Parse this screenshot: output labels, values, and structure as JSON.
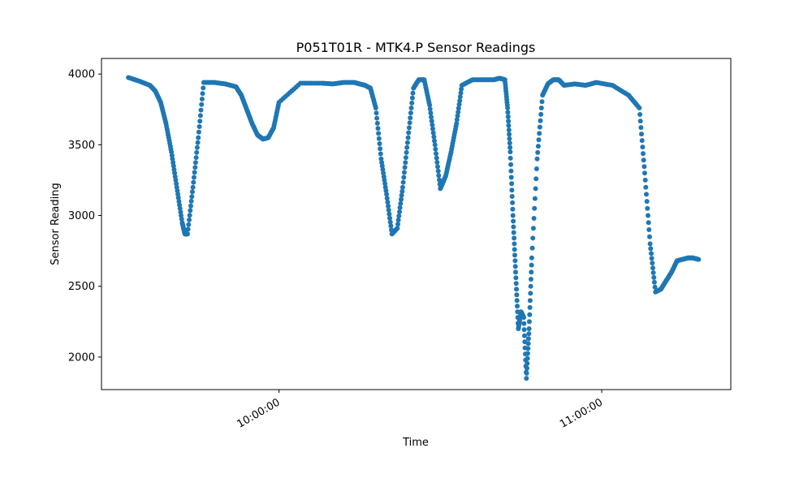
{
  "chart_data": {
    "type": "scatter",
    "title": "P051T01R - MTK4.P Sensor Readings",
    "xlabel": "Time",
    "ylabel": "Sensor Reading",
    "x_unit": "minutes",
    "xlim": [
      "09:27:00",
      "11:24:00"
    ],
    "ylim": [
      1770,
      4110
    ],
    "yticks": [
      2000,
      2500,
      3000,
      3500,
      4000
    ],
    "xticks": [
      "10:00:00",
      "11:00:00"
    ],
    "grid": false,
    "color": "#1f77b4",
    "series": [
      {
        "x": [
          "09:32:00",
          "09:34:00",
          "09:36:00",
          "09:37:00",
          "09:38:00",
          "09:39:00",
          "09:40:00",
          "09:41:00",
          "09:42:00",
          "09:42:30",
          "09:43:00",
          "09:44:00",
          "09:45:00",
          "09:46:00",
          "09:48:00",
          "09:50:00",
          "09:52:00",
          "09:53:00",
          "09:54:00",
          "09:55:00",
          "09:56:00",
          "09:57:00",
          "09:58:00",
          "09:59:00",
          "10:00:00",
          "10:04:00",
          "10:08:00",
          "10:10:00",
          "10:12:00",
          "10:14:00",
          "10:15:00",
          "10:16:00",
          "10:17:00",
          "10:18:00",
          "10:19:00",
          "10:20:00",
          "10:21:00",
          "10:22:00",
          "10:23:00",
          "10:24:00",
          "10:25:00",
          "10:26:00",
          "10:27:00",
          "10:28:00",
          "10:29:00",
          "10:30:00",
          "10:31:00",
          "10:32:00",
          "10:33:00",
          "10:34:00",
          "10:36:00",
          "10:38:00",
          "10:40:00",
          "10:41:00",
          "10:42:00",
          "10:42:30",
          "10:43:00",
          "10:43:30",
          "10:44:00",
          "10:44:30",
          "10:45:00",
          "10:45:30",
          "10:46:00",
          "10:46:30",
          "10:47:00",
          "10:48:00",
          "10:49:00",
          "10:50:00",
          "10:51:00",
          "10:52:00",
          "10:53:00",
          "10:55:00",
          "10:57:00",
          "10:59:00",
          "11:02:00",
          "11:05:00",
          "11:07:00",
          "11:08:00",
          "11:09:00",
          "11:10:00",
          "11:11:00",
          "11:12:00",
          "11:13:00",
          "11:14:00",
          "11:15:00",
          "11:16:00",
          "11:17:00",
          "11:18:00"
        ],
        "y": [
          3975,
          3950,
          3920,
          3880,
          3800,
          3650,
          3450,
          3200,
          2950,
          2870,
          2870,
          3200,
          3550,
          3940,
          3940,
          3930,
          3910,
          3850,
          3750,
          3650,
          3570,
          3540,
          3550,
          3620,
          3800,
          3935,
          3935,
          3930,
          3940,
          3940,
          3930,
          3920,
          3900,
          3760,
          3400,
          3150,
          2870,
          2910,
          3200,
          3550,
          3900,
          3960,
          3960,
          3780,
          3500,
          3190,
          3280,
          3450,
          3650,
          3920,
          3960,
          3960,
          3960,
          3970,
          3960,
          3760,
          3450,
          3000,
          2600,
          2200,
          2320,
          2280,
          1850,
          2200,
          2700,
          3400,
          3850,
          3930,
          3960,
          3960,
          3920,
          3930,
          3920,
          3940,
          3920,
          3850,
          3760,
          3300,
          2800,
          2460,
          2480,
          2540,
          2600,
          2680,
          2690,
          2700,
          2700,
          2690
        ]
      }
    ]
  }
}
